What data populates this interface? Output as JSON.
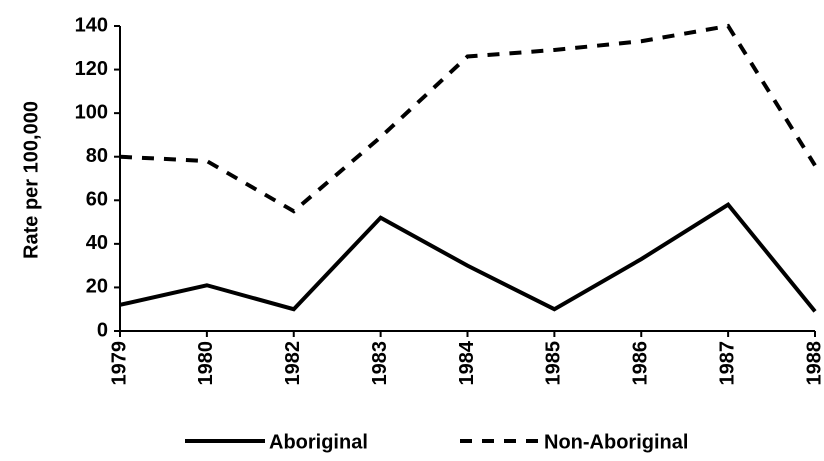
{
  "chart_data": {
    "type": "line",
    "categories": [
      "1979",
      "1980",
      "1982",
      "1983",
      "1984",
      "1985",
      "1986",
      "1987",
      "1988"
    ],
    "y_label": "Rate per 100,000",
    "series": [
      {
        "name": "Aboriginal",
        "color": "#000000",
        "line_style": "solid",
        "values": [
          12,
          21,
          10,
          52,
          30,
          10,
          33,
          58,
          9
        ]
      },
      {
        "name": "Non-Aboriginal",
        "color": "#000000",
        "line_style": "dashed",
        "values": [
          80,
          78,
          55,
          89,
          126,
          129,
          133,
          140,
          76
        ]
      }
    ],
    "ylim": [
      0,
      140
    ],
    "yticks": [
      0,
      20,
      40,
      60,
      80,
      100,
      120,
      140
    ],
    "grid": false,
    "legend": "bottom"
  }
}
